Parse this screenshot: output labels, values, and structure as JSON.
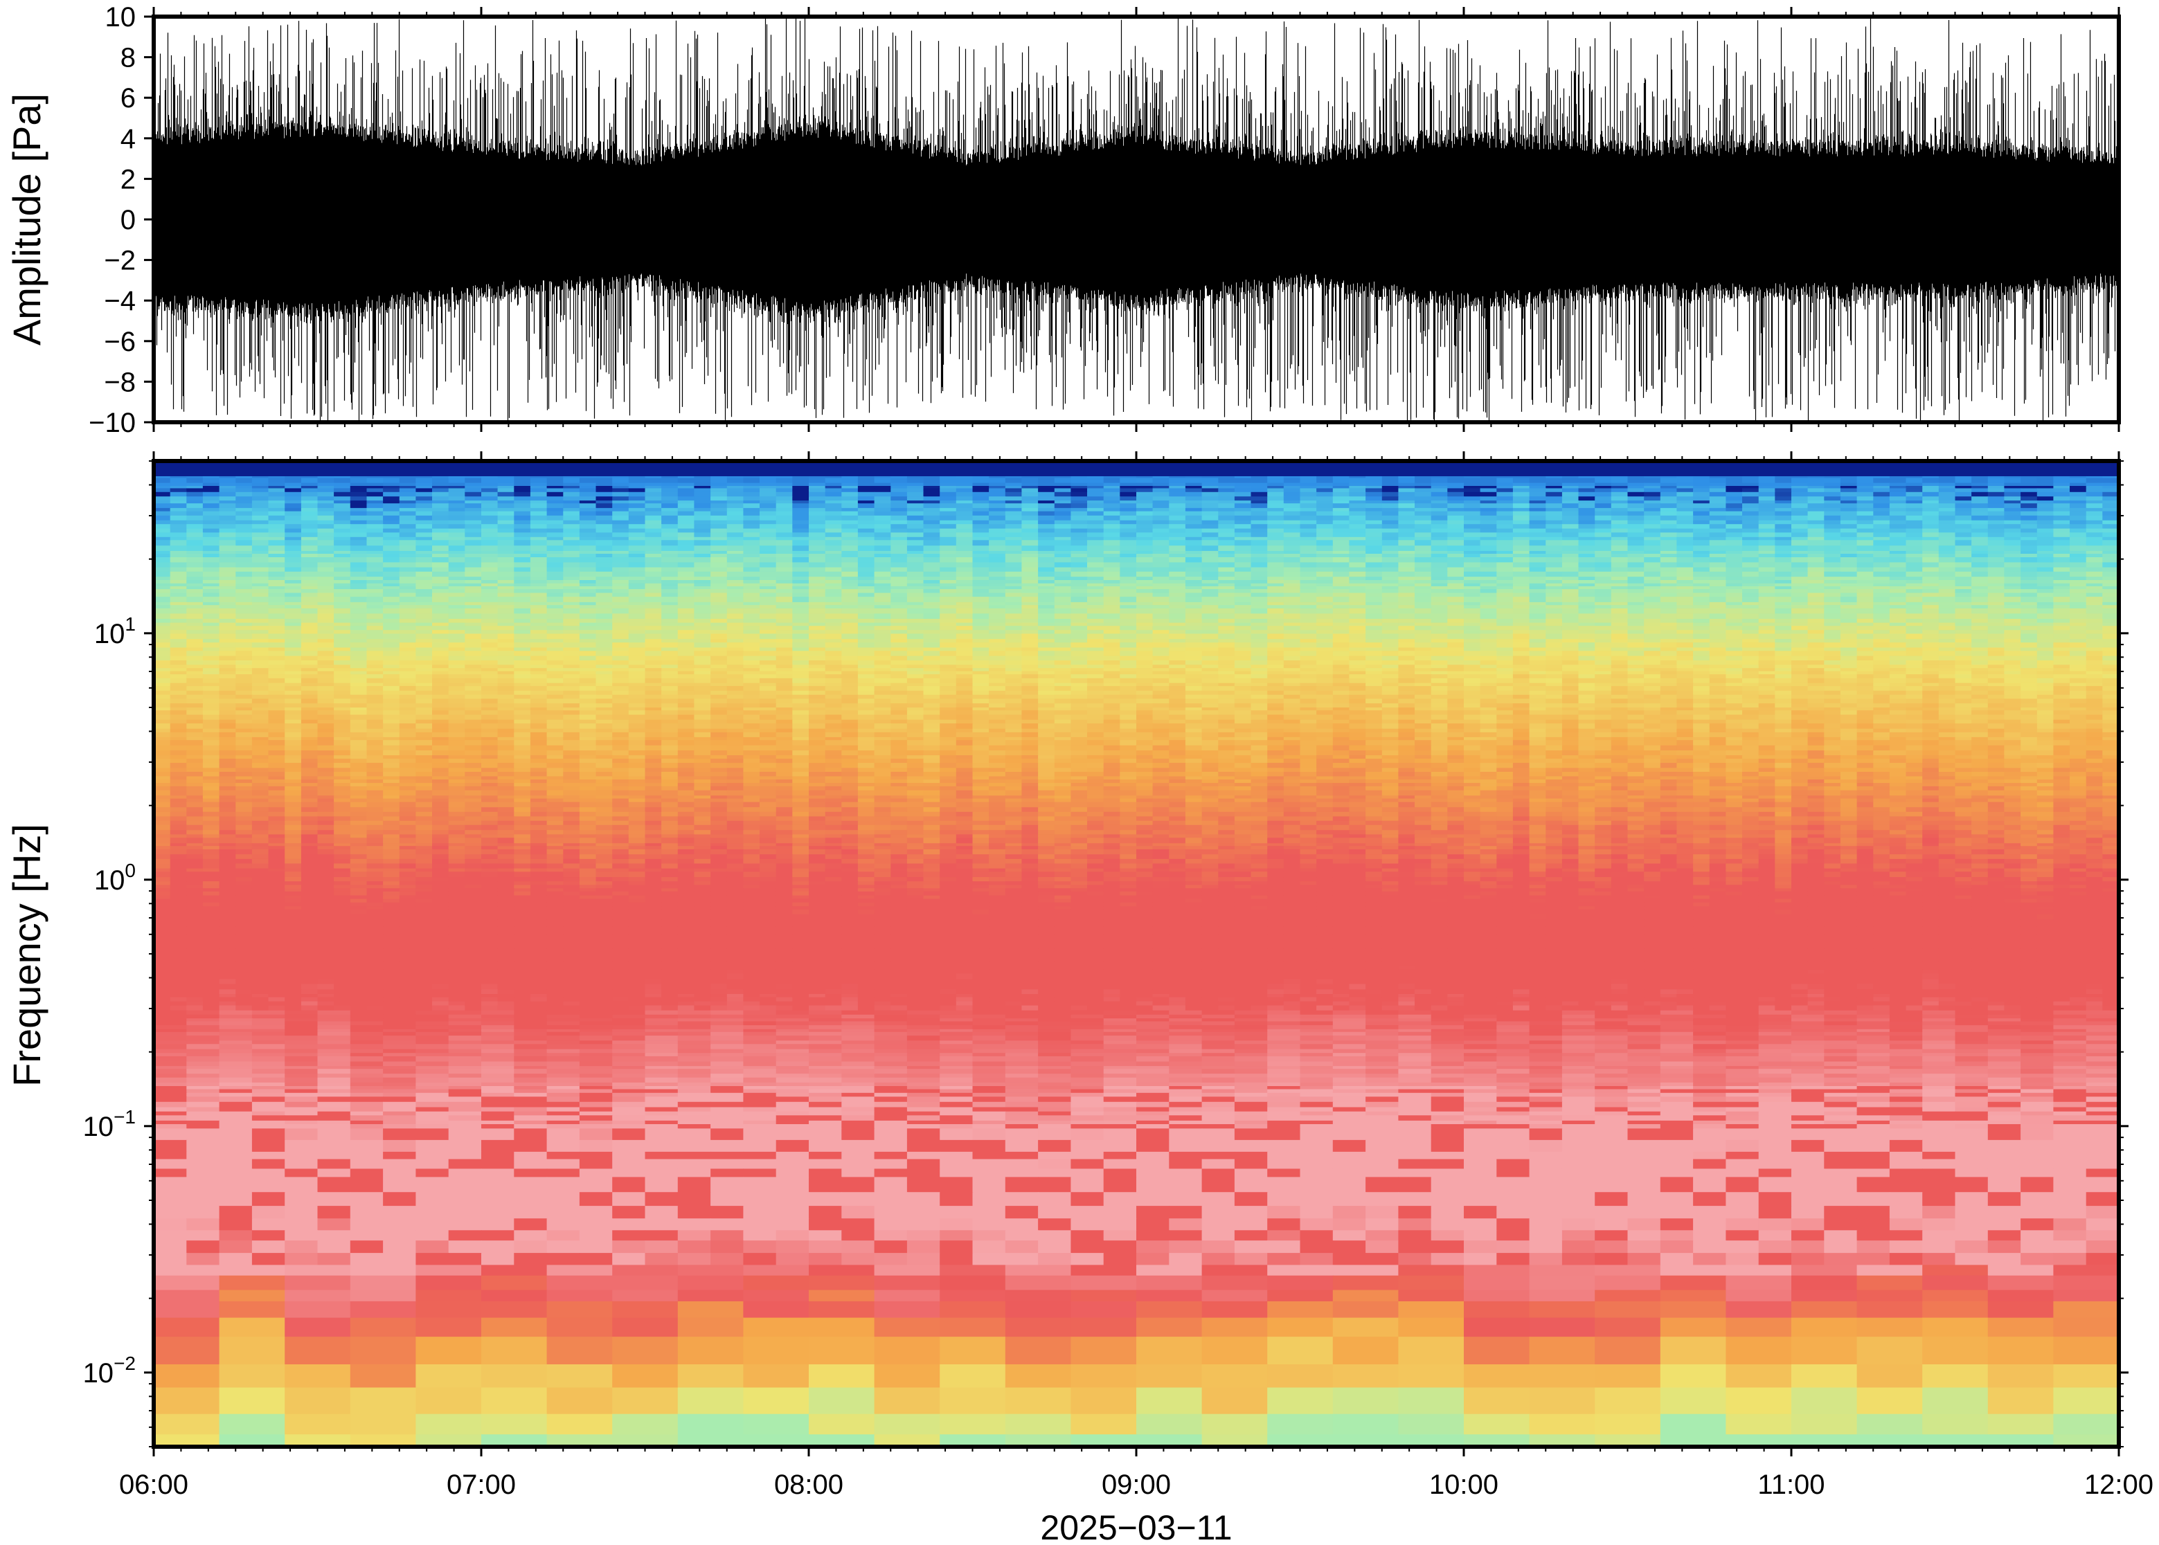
{
  "chart_data": [
    {
      "type": "line",
      "title": "",
      "ylabel": "Amplitude [Pa]",
      "ylim": [
        -10,
        10
      ],
      "yticks": [
        10,
        8,
        6,
        4,
        2,
        0,
        -2,
        -4,
        -6,
        -8,
        -10
      ],
      "ytick_labels": [
        "10",
        "8",
        "6",
        "4",
        "2",
        "0",
        "−2",
        "−4",
        "−6",
        "−8",
        "−10"
      ],
      "xlim": [
        "2025-03-11 06:00",
        "2025-03-11 12:00"
      ],
      "series": [
        {
          "color": "#000000",
          "envelope": {
            "time": [
              "06:00",
              "06:30",
              "07:00",
              "07:30",
              "08:00",
              "08:30",
              "09:00",
              "09:30",
              "10:00",
              "10:30",
              "11:00",
              "11:30",
              "12:00"
            ],
            "dense_band_pa": [
              4.0,
              4.5,
              3.5,
              3.0,
              4.5,
              3.0,
              4.0,
              3.0,
              4.0,
              3.5,
              3.5,
              3.5,
              3.0
            ],
            "peak_pa": [
              10,
              10,
              10,
              10,
              10,
              9,
              10,
              10,
              10,
              10,
              10,
              10,
              10
            ]
          }
        }
      ]
    },
    {
      "type": "heatmap",
      "ylabel": "Frequency [Hz]",
      "xlabel": "2025−03−11",
      "yscale": "log",
      "ylim": [
        0.005,
        50
      ],
      "ytick_labels": [
        {
          "base": "10",
          "exp": "1",
          "value": 10
        },
        {
          "base": "10",
          "exp": "0",
          "value": 1
        },
        {
          "base": "10",
          "exp": "−1",
          "value": 0.1
        },
        {
          "base": "10",
          "exp": "−2",
          "value": 0.01
        }
      ],
      "xticks": [
        "06:00",
        "07:00",
        "08:00",
        "09:00",
        "10:00",
        "11:00",
        "12:00"
      ],
      "colormap": "rainbow: low power = cyan/light green, high power = red/pink, top band = dark blue",
      "colors": {
        "dark_blue": "#0a1e8c",
        "blue": "#2f8fe6",
        "cyan": "#5ad8e6",
        "green": "#a8ecb0",
        "yellow": "#f0e36e",
        "orange": "#f5a94b",
        "red": "#ec5a5a",
        "pink": "#f6a6aa"
      },
      "frequency_profile_hz": [
        {
          "freq": 45,
          "color": "dark_blue"
        },
        {
          "freq": 40,
          "color": "blue"
        },
        {
          "freq": 25,
          "color": "cyan"
        },
        {
          "freq": 15,
          "color": "green"
        },
        {
          "freq": 8,
          "color": "yellow"
        },
        {
          "freq": 3,
          "color": "orange"
        },
        {
          "freq": 1,
          "color": "red"
        },
        {
          "freq": 0.3,
          "color": "red"
        },
        {
          "freq": 0.1,
          "color": "pink"
        },
        {
          "freq": 0.04,
          "color": "pink"
        },
        {
          "freq": 0.02,
          "color": "red"
        },
        {
          "freq": 0.012,
          "color": "orange"
        },
        {
          "freq": 0.007,
          "color": "yellow"
        },
        {
          "freq": 0.005,
          "color": "green"
        }
      ]
    }
  ]
}
